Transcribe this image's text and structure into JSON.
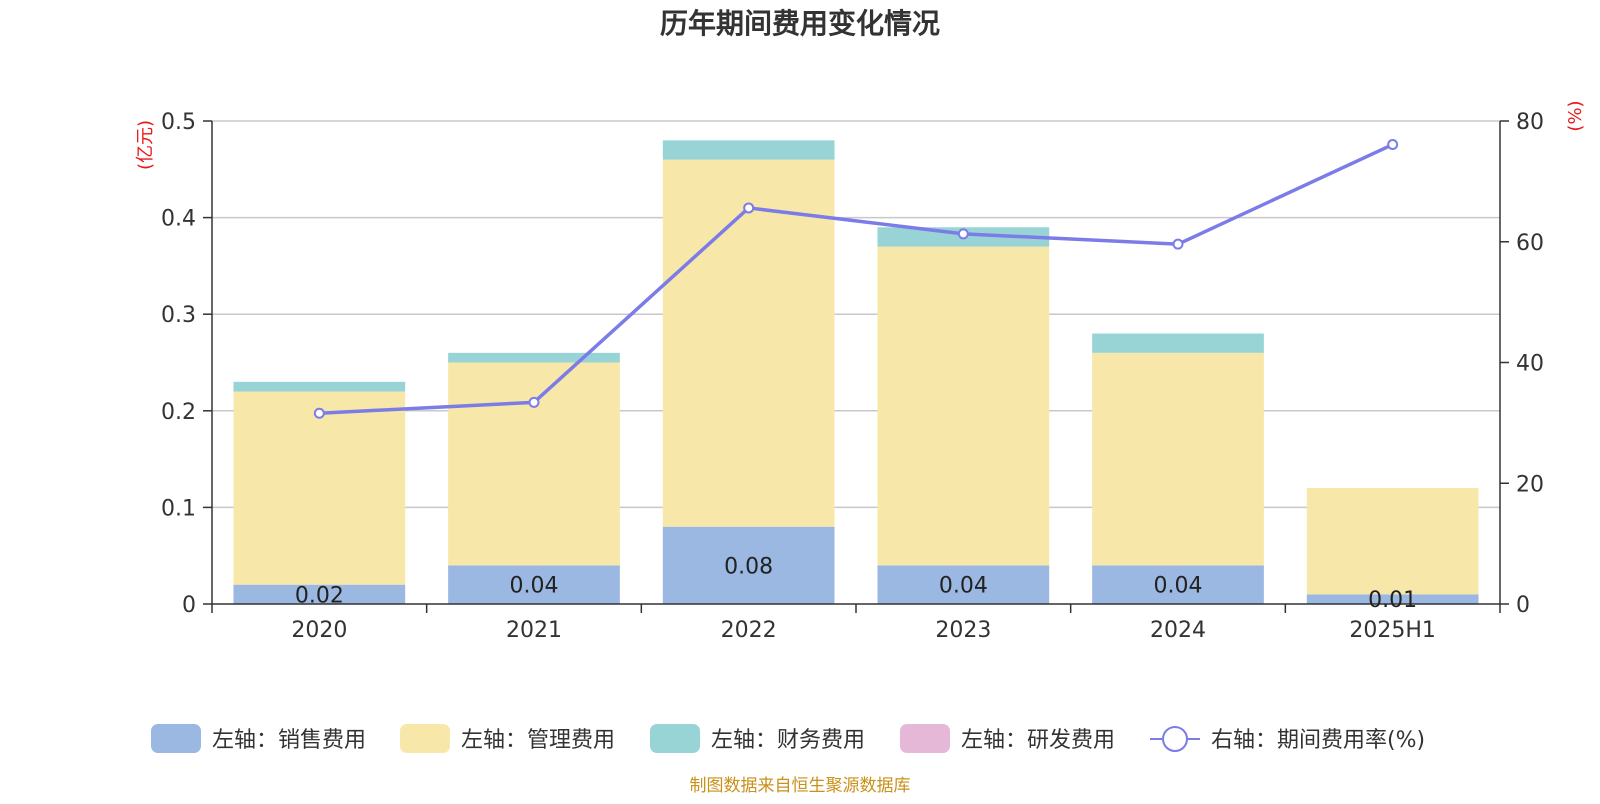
{
  "chart_data": {
    "type": "bar",
    "title": "历年期间费用变化情况",
    "categories": [
      "2020",
      "2021",
      "2022",
      "2023",
      "2024",
      "2025H1"
    ],
    "left_axis": {
      "unit_label": "(亿元)",
      "ylim": [
        0,
        0.5
      ],
      "ticks": [
        "0",
        "0.1",
        "0.2",
        "0.3",
        "0.4",
        "0.5"
      ]
    },
    "right_axis": {
      "unit_label": "(%)",
      "ylim": [
        0,
        80
      ],
      "ticks": [
        "0",
        "20",
        "40",
        "60",
        "80"
      ]
    },
    "stacked": true,
    "series": [
      {
        "name": "左轴：销售费用",
        "axis": "left",
        "type": "bar",
        "color": "#9bb8e2",
        "values": [
          0.02,
          0.04,
          0.08,
          0.04,
          0.04,
          0.01
        ],
        "labels": [
          "0.02",
          "0.04",
          "0.08",
          "0.04",
          "0.04",
          "0.01"
        ]
      },
      {
        "name": "左轴：管理费用",
        "axis": "left",
        "type": "bar",
        "color": "#f7e7a8",
        "values": [
          0.2,
          0.21,
          0.38,
          0.33,
          0.22,
          0.11
        ]
      },
      {
        "name": "左轴：财务费用",
        "axis": "left",
        "type": "bar",
        "color": "#98d4d6",
        "values": [
          0.01,
          0.01,
          0.02,
          0.02,
          0.02,
          0
        ]
      },
      {
        "name": "左轴：研发费用",
        "axis": "left",
        "type": "bar",
        "color": "#e6b8d8",
        "values": [
          0,
          0,
          0,
          0,
          0,
          0
        ]
      },
      {
        "name": "右轴：期间费用率(%)",
        "axis": "right",
        "type": "line",
        "color": "#7b7ce8",
        "values": [
          31.6,
          33.4,
          65.6,
          61.3,
          59.6,
          76.1
        ]
      }
    ],
    "grid": true,
    "legend_position": "bottom"
  },
  "footer": {
    "source": "制图数据来自恒生聚源数据库"
  },
  "colors": {
    "axis_unit": "#e8191a",
    "source": "#c9901a",
    "grid": "#c8c8c8",
    "axis_line": "#333333"
  }
}
